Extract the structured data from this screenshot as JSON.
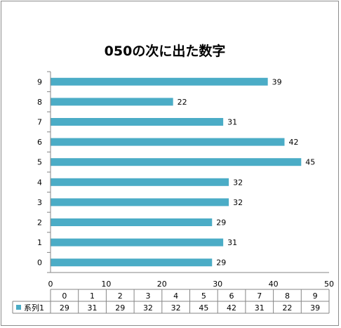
{
  "chart_data": {
    "type": "bar",
    "orientation": "horizontal",
    "title": "050の次に出た数字",
    "categories": [
      "0",
      "1",
      "2",
      "3",
      "4",
      "5",
      "6",
      "7",
      "8",
      "9"
    ],
    "series": [
      {
        "name": "系列1",
        "values": [
          29,
          31,
          29,
          32,
          32,
          45,
          42,
          31,
          22,
          39
        ],
        "color": "#4bacc6"
      }
    ],
    "xlim": [
      0,
      50
    ],
    "x_ticks": [
      "0",
      "10",
      "20",
      "30",
      "40",
      "50"
    ],
    "grid": false,
    "legend": "data-table-bottom",
    "data_table": {
      "header": [
        "0",
        "1",
        "2",
        "3",
        "4",
        "5",
        "6",
        "7",
        "8",
        "9"
      ]
    }
  }
}
